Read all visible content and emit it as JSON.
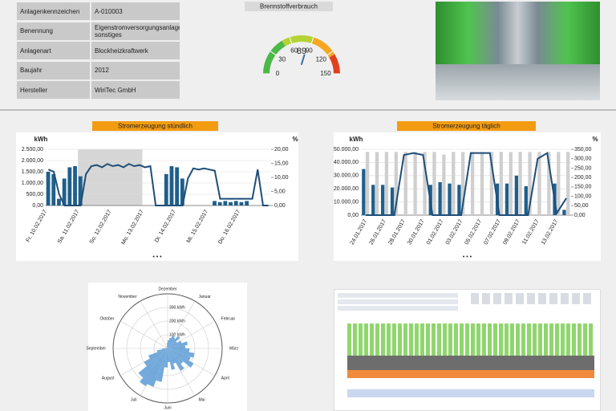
{
  "info_table": {
    "rows": [
      [
        "Anlagenkennzeichen",
        "A-010003"
      ],
      [
        "Benennung",
        "Eigenstromversorgungsanlage sonstiges"
      ],
      [
        "Anlagenart",
        "Blockheizkraftwerk"
      ],
      [
        "Baujahr",
        "2012"
      ],
      [
        "Hersteller",
        "WiriTec GmbH"
      ]
    ]
  },
  "gauge": {
    "title": "Brennstoffverbrauch",
    "value": 89,
    "lim": [
      0,
      150
    ],
    "ticks": [
      0,
      30,
      60,
      90,
      120,
      150
    ]
  },
  "hourly": {
    "title": "Stromerzeugung stündlich",
    "y_label": "kWh",
    "y2_label": "%",
    "more": "• • •",
    "ylim": [
      0,
      2500
    ],
    "yticks": [
      {
        "value": 0,
        "label": "0,00"
      },
      {
        "value": 500,
        "label": "500,00"
      },
      {
        "value": 1000,
        "label": "1.000,00"
      },
      {
        "value": 1500,
        "label": "1.500,00"
      },
      {
        "value": 2000,
        "label": "2.000,00"
      },
      {
        "value": 2500,
        "label": "2.500,00"
      }
    ],
    "y2lim": [
      0,
      20
    ],
    "y2ticks": [
      {
        "value": 0,
        "label": "0,00"
      },
      {
        "value": 5,
        "label": "5,00"
      },
      {
        "value": 10,
        "label": "10,00"
      },
      {
        "value": 15,
        "label": "15,00"
      },
      {
        "value": 20,
        "label": "20,00"
      }
    ],
    "categories": [
      "Fr. 10.02.2017",
      null,
      null,
      null,
      null,
      null,
      "Sa. 11.02.2017",
      null,
      null,
      null,
      null,
      null,
      "So. 12.02.2017",
      null,
      null,
      null,
      null,
      null,
      "Mo. 13.02.2017",
      null,
      null,
      null,
      null,
      null,
      "Di. 14.02.2017",
      null,
      null,
      null,
      null,
      null,
      "Mi. 15.02.2017",
      null,
      null,
      null,
      null,
      null,
      "Do. 16.02.2017",
      null,
      null,
      null,
      null,
      null
    ],
    "series": [
      {
        "type": "bar",
        "color": "#1f5f8b",
        "values": [
          1500,
          1400,
          300,
          1200,
          1700,
          1750,
          1300,
          0,
          0,
          0,
          0,
          0,
          0,
          0,
          0,
          0,
          0,
          0,
          0,
          0,
          0,
          0,
          1400,
          1750,
          1700,
          1200,
          0,
          0,
          0,
          0,
          0,
          200,
          150,
          200,
          150,
          200,
          150,
          200,
          0,
          0,
          0,
          0
        ]
      },
      {
        "type": "line",
        "color": "#1f4e79",
        "values": [
          1600,
          1500,
          500,
          0,
          0,
          0,
          0,
          1400,
          1750,
          1800,
          1700,
          1850,
          1750,
          1800,
          1700,
          1850,
          1750,
          1800,
          1700,
          1750,
          0,
          0,
          0,
          0,
          0,
          0,
          1200,
          1650,
          1600,
          1650,
          1600,
          1550,
          300,
          300,
          300,
          300,
          300,
          300,
          300,
          1600,
          0,
          0
        ]
      }
    ]
  },
  "daily": {
    "title": "Stromerzeugung täglich",
    "y_label": "kWh",
    "y2_label": "%",
    "more": "• • •",
    "ylim": [
      0,
      50000
    ],
    "yticks": [
      {
        "value": 0,
        "label": "0,00"
      },
      {
        "value": 10000,
        "label": "10.000,00"
      },
      {
        "value": 20000,
        "label": "20.000,00"
      },
      {
        "value": 30000,
        "label": "30.000,00"
      },
      {
        "value": 40000,
        "label": "40.000,00"
      },
      {
        "value": 50000,
        "label": "50.000,00"
      }
    ],
    "y2lim": [
      0,
      350
    ],
    "y2ticks": [
      {
        "value": 0,
        "label": "0,00"
      },
      {
        "value": 50,
        "label": "50,00"
      },
      {
        "value": 100,
        "label": "100,00"
      },
      {
        "value": 150,
        "label": "150,00"
      },
      {
        "value": 200,
        "label": "200,00"
      },
      {
        "value": 250,
        "label": "250,00"
      },
      {
        "value": 300,
        "label": "300,00"
      },
      {
        "value": 350,
        "label": "350,00"
      }
    ],
    "categories": [
      "24.01.2017",
      null,
      "26.01.2017",
      null,
      "28.01.2017",
      null,
      "30.01.2017",
      null,
      "01.02.2017",
      null,
      "03.02.2017",
      null,
      "05.02.2017",
      null,
      "07.02.2017",
      null,
      "09.02.2017",
      null,
      "11.02.2017",
      null,
      "13.02.2017",
      null
    ],
    "series": [
      {
        "type": "bar",
        "color": "#1f5f8b",
        "values": [
          35000,
          23000,
          23000,
          21000,
          0,
          0,
          0,
          23000,
          25000,
          24000,
          23000,
          0,
          0,
          0,
          24000,
          24000,
          30000,
          22000,
          0,
          0,
          24000,
          4000
        ]
      },
      {
        "type": "bar",
        "color": "#cfcfcf",
        "values": [
          48000,
          48000,
          48000,
          48000,
          48000,
          48000,
          48000,
          48000,
          46000,
          48000,
          48000,
          48000,
          48000,
          48000,
          48000,
          48000,
          48000,
          48000,
          48000,
          48000,
          48000,
          48000
        ]
      },
      {
        "type": "line",
        "axis": "y2",
        "color": "#1f4e79",
        "values": [
          0,
          0,
          0,
          0,
          320,
          330,
          320,
          0,
          0,
          0,
          0,
          330,
          330,
          330,
          0,
          0,
          0,
          0,
          300,
          330,
          10,
          90
        ]
      }
    ]
  },
  "polar": {
    "months": [
      "Dezember",
      "Januar",
      "Februar",
      "März",
      "April",
      "Mai",
      "Juni",
      "Juli",
      "August",
      "September",
      "Oktober",
      "November"
    ],
    "rlim": [
      0,
      400
    ],
    "rticks": [
      {
        "value": 100,
        "label": "100 kWh"
      },
      {
        "value": 200,
        "label": "200 kWh"
      },
      {
        "value": 300,
        "label": "300 kWh"
      }
    ],
    "color": "#5b9bd5",
    "values": [
      60,
      80,
      100,
      90,
      120,
      80,
      110,
      150,
      130,
      160,
      200,
      180,
      220,
      150,
      190,
      120,
      160,
      100,
      140,
      250,
      300,
      320,
      280,
      200,
      150,
      80,
      40,
      20,
      10,
      0,
      0,
      0,
      0,
      10,
      20,
      40
    ]
  }
}
